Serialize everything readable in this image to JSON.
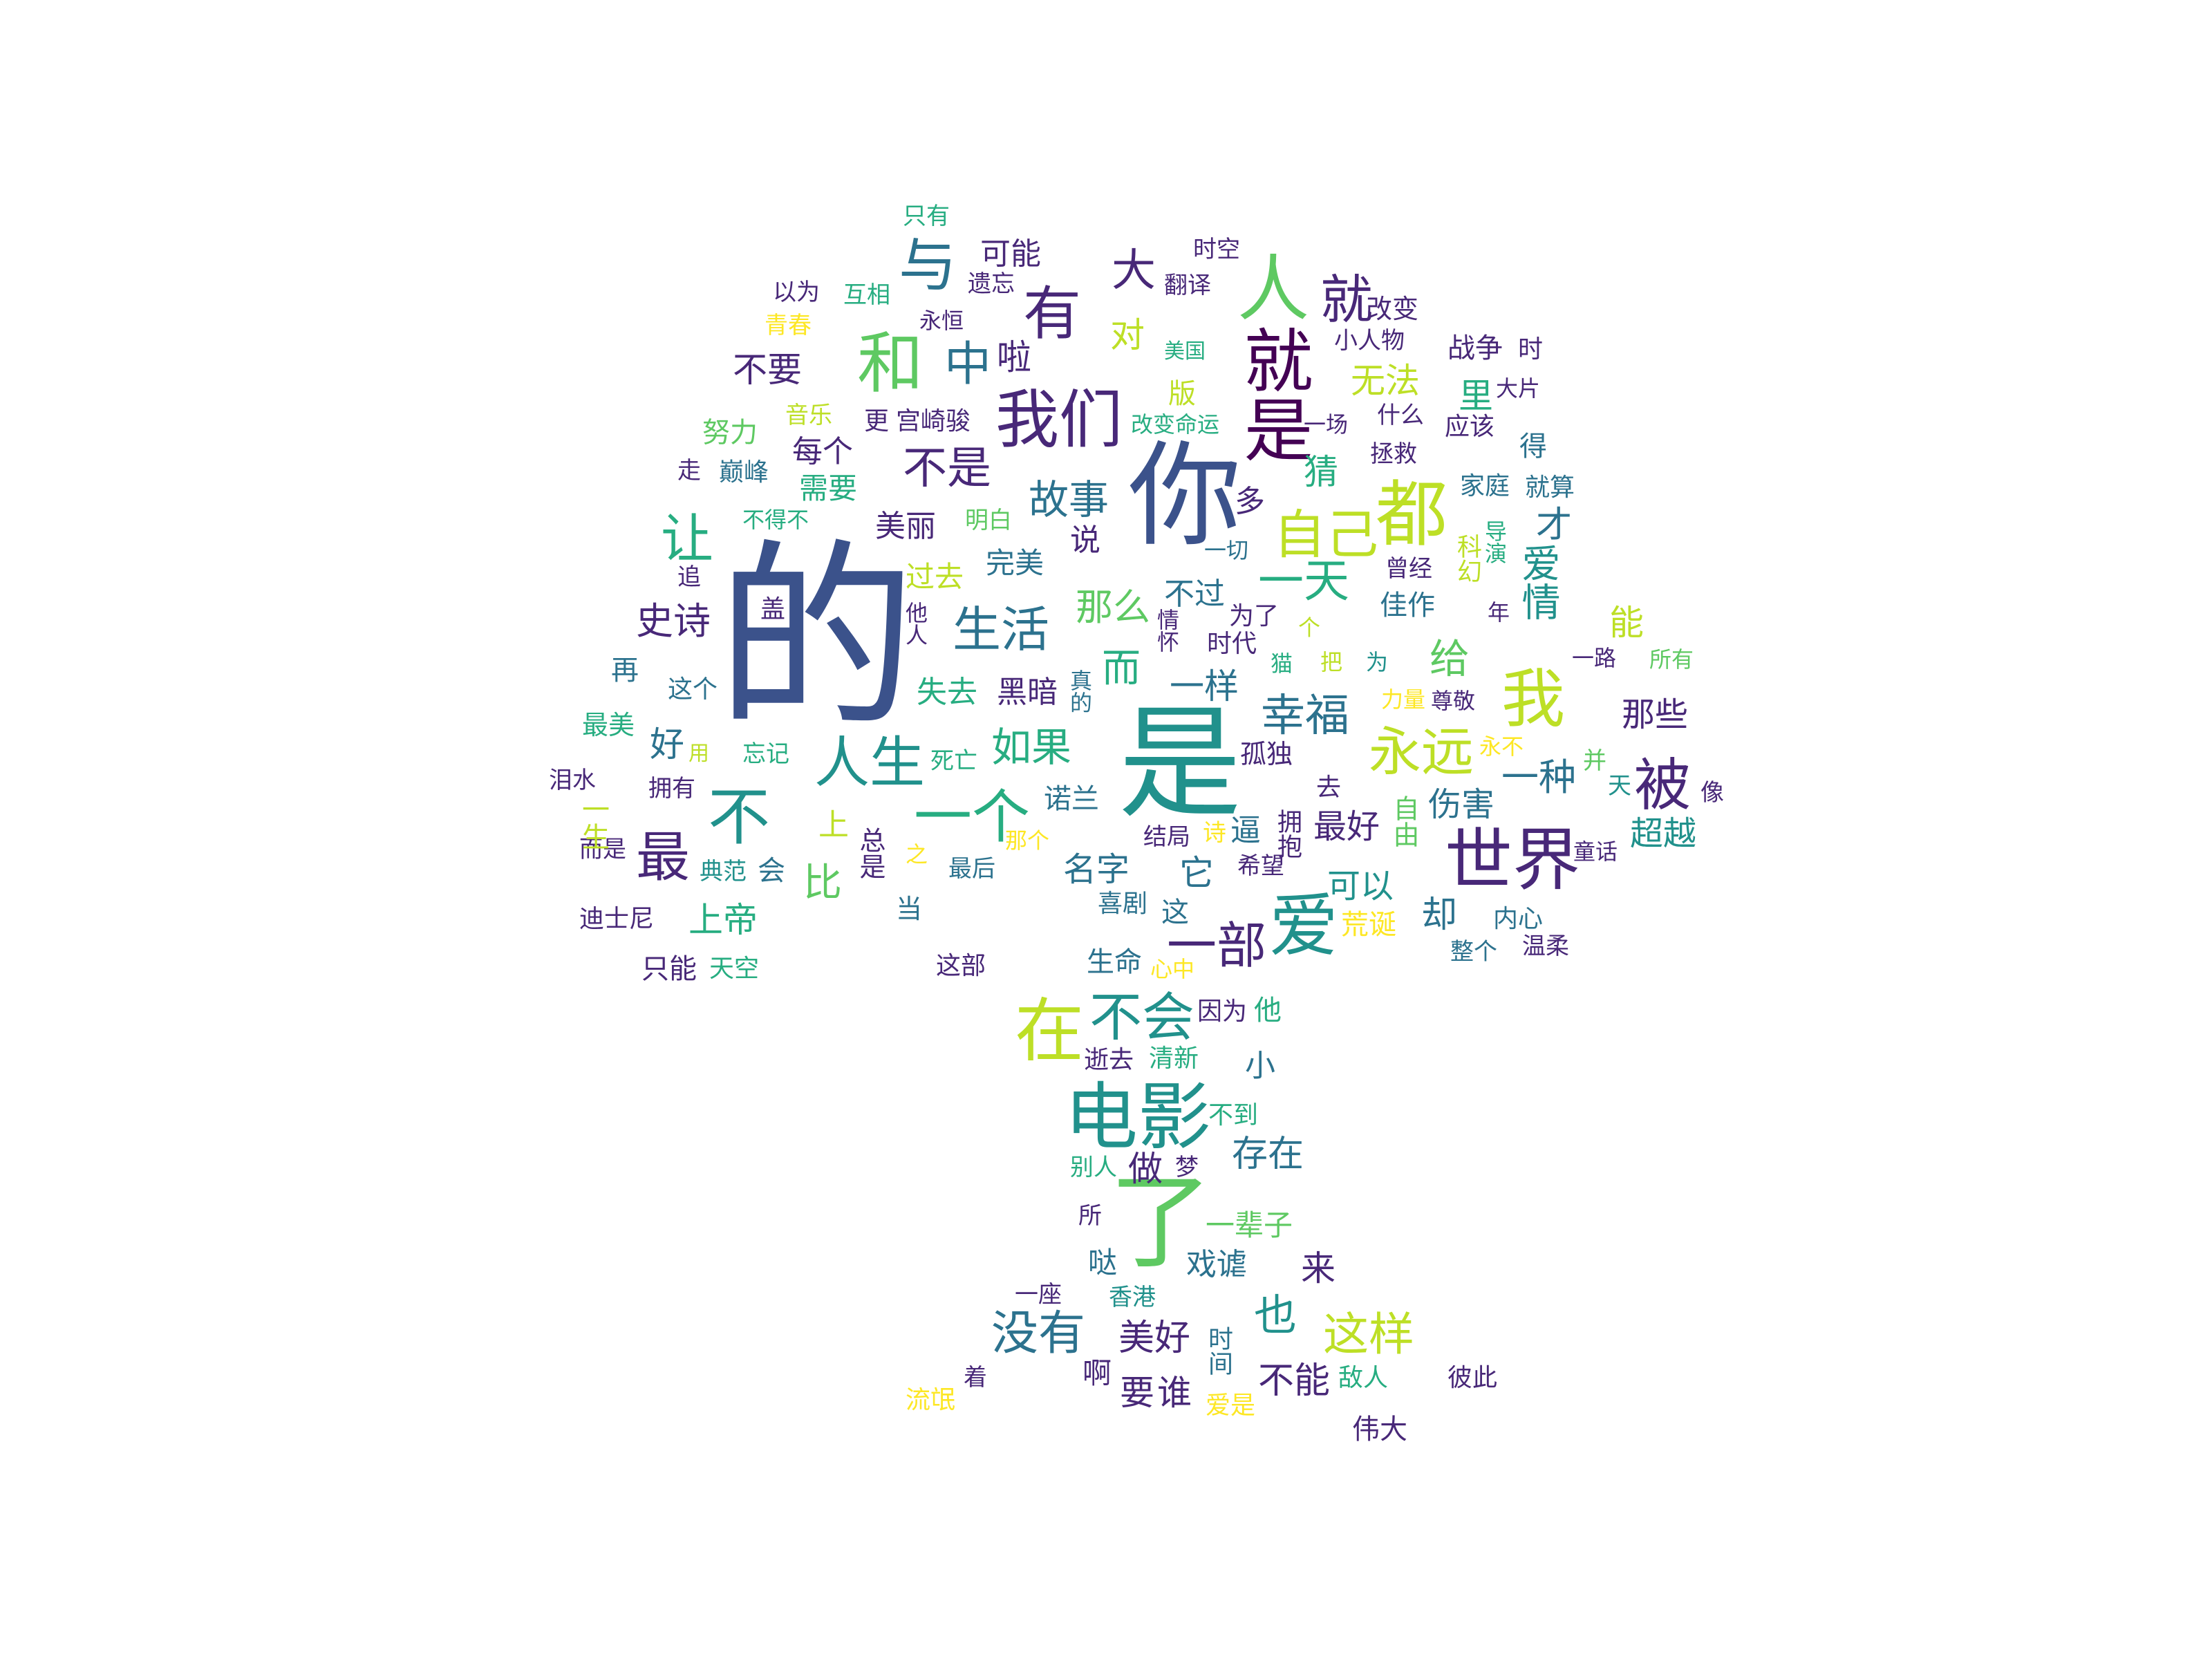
{
  "palette": {
    "c1": "#3b528b",
    "c2": "#21918c",
    "c3": "#5ec962",
    "c4": "#bddf26",
    "c5": "#440154",
    "c6": "#2c728e",
    "c7": "#27ad81",
    "c8": "#fde725",
    "c9": "#482878"
  },
  "words": [
    {
      "text": "的",
      "color": "c1"
    },
    {
      "text": "是",
      "color": "c2"
    },
    {
      "text": "你",
      "color": "c1"
    },
    {
      "text": "了",
      "color": "c3"
    },
    {
      "text": "电影",
      "color": "c2"
    },
    {
      "text": "都",
      "color": "c4"
    },
    {
      "text": "人",
      "color": "c3"
    },
    {
      "text": "就是",
      "color": "c5"
    },
    {
      "text": "我们",
      "color": "c9"
    },
    {
      "text": "世界",
      "color": "c9"
    },
    {
      "text": "爱",
      "color": "c2"
    },
    {
      "text": "不会",
      "color": "c2"
    },
    {
      "text": "在",
      "color": "c4"
    },
    {
      "text": "和",
      "color": "c3"
    },
    {
      "text": "有",
      "color": "c9"
    },
    {
      "text": "与",
      "color": "c6"
    },
    {
      "text": "我",
      "color": "c4"
    },
    {
      "text": "被",
      "color": "c9"
    },
    {
      "text": "不",
      "color": "c2"
    },
    {
      "text": "自己",
      "color": "c4"
    },
    {
      "text": "人生",
      "color": "c2"
    },
    {
      "text": "一个",
      "color": "c7"
    },
    {
      "text": "永远",
      "color": "c4"
    },
    {
      "text": "让",
      "color": "c7"
    },
    {
      "text": "最",
      "color": "c9"
    },
    {
      "text": "就",
      "color": "c9"
    },
    {
      "text": "生活",
      "color": "c6"
    },
    {
      "text": "一部",
      "color": "c9"
    },
    {
      "text": "中",
      "color": "c6"
    },
    {
      "text": "不是",
      "color": "c9"
    },
    {
      "text": "大",
      "color": "c9"
    },
    {
      "text": "没有",
      "color": "c6"
    },
    {
      "text": "这样",
      "color": "c4"
    },
    {
      "text": "幸福",
      "color": "c6"
    },
    {
      "text": "故事",
      "color": "c6"
    },
    {
      "text": "如果",
      "color": "c7"
    },
    {
      "text": "史诗",
      "color": "c9"
    },
    {
      "text": "一天",
      "color": "c7"
    },
    {
      "text": "爱情",
      "color": "c2"
    },
    {
      "text": "一种",
      "color": "c6"
    },
    {
      "text": "那么",
      "color": "c3"
    },
    {
      "text": "存在",
      "color": "c6"
    },
    {
      "text": "也",
      "color": "c2"
    },
    {
      "text": "美好",
      "color": "c9"
    },
    {
      "text": "不能",
      "color": "c9"
    },
    {
      "text": "要",
      "color": "c9"
    },
    {
      "text": "谁",
      "color": "c9"
    },
    {
      "text": "可以",
      "color": "c2"
    },
    {
      "text": "最好",
      "color": "c9"
    },
    {
      "text": "伤害",
      "color": "c6"
    },
    {
      "text": "超越",
      "color": "c2"
    },
    {
      "text": "那些",
      "color": "c9"
    },
    {
      "text": "名字",
      "color": "c6"
    },
    {
      "text": "上帝",
      "color": "c7"
    },
    {
      "text": "比",
      "color": "c3"
    },
    {
      "text": "上",
      "color": "c4"
    },
    {
      "text": "一样",
      "color": "c6"
    },
    {
      "text": "黑暗",
      "color": "c9"
    },
    {
      "text": "失去",
      "color": "c7"
    },
    {
      "text": "美丽",
      "color": "c9"
    },
    {
      "text": "不要",
      "color": "c9"
    },
    {
      "text": "可能",
      "color": "c9"
    },
    {
      "text": "对",
      "color": "c4"
    },
    {
      "text": "无法",
      "color": "c4"
    },
    {
      "text": "啦",
      "color": "c9"
    },
    {
      "text": "好",
      "color": "c6"
    },
    {
      "text": "给",
      "color": "c3"
    },
    {
      "text": "能",
      "color": "c4"
    },
    {
      "text": "才",
      "color": "c6"
    },
    {
      "text": "猜",
      "color": "c7"
    },
    {
      "text": "里",
      "color": "c7"
    },
    {
      "text": "每个",
      "color": "c9"
    },
    {
      "text": "需要",
      "color": "c7"
    },
    {
      "text": "完美",
      "color": "c6"
    },
    {
      "text": "过去",
      "color": "c4"
    },
    {
      "text": "说",
      "color": "c9"
    },
    {
      "text": "多",
      "color": "c9"
    },
    {
      "text": "来",
      "color": "c9"
    },
    {
      "text": "做",
      "color": "c9"
    },
    {
      "text": "戏谑",
      "color": "c6"
    },
    {
      "text": "一辈子",
      "color": "c3"
    },
    {
      "text": "啊",
      "color": "c9"
    },
    {
      "text": "哒",
      "color": "c6"
    },
    {
      "text": "而",
      "color": "c7"
    },
    {
      "text": "不过",
      "color": "c6"
    },
    {
      "text": "却",
      "color": "c6"
    },
    {
      "text": "佳作",
      "color": "c6"
    },
    {
      "text": "时代",
      "color": "c9"
    },
    {
      "text": "为了",
      "color": "c9"
    },
    {
      "text": "这个",
      "color": "c6"
    },
    {
      "text": "再",
      "color": "c6"
    },
    {
      "text": "最美",
      "color": "c7"
    },
    {
      "text": "孤独",
      "color": "c9"
    },
    {
      "text": "它",
      "color": "c6"
    },
    {
      "text": "这",
      "color": "c6"
    },
    {
      "text": "结局",
      "color": "c9"
    },
    {
      "text": "诗",
      "color": "c8"
    },
    {
      "text": "逼",
      "color": "c6"
    },
    {
      "text": "诺兰",
      "color": "c6"
    },
    {
      "text": "死亡",
      "color": "c7"
    },
    {
      "text": "内心",
      "color": "c6"
    },
    {
      "text": "温柔",
      "color": "c9"
    },
    {
      "text": "整个",
      "color": "c6"
    },
    {
      "text": "荒诞",
      "color": "c8"
    },
    {
      "text": "喜剧",
      "color": "c6"
    },
    {
      "text": "希望",
      "color": "c9"
    },
    {
      "text": "最后",
      "color": "c6"
    },
    {
      "text": "之",
      "color": "c8"
    },
    {
      "text": "当",
      "color": "c6"
    },
    {
      "text": "总是",
      "color": "c9"
    },
    {
      "text": "会",
      "color": "c6"
    },
    {
      "text": "典范",
      "color": "c2"
    },
    {
      "text": "而是",
      "color": "c9"
    },
    {
      "text": "一生",
      "color": "c4"
    },
    {
      "text": "泪水",
      "color": "c9"
    },
    {
      "text": "拥有",
      "color": "c9"
    },
    {
      "text": "用",
      "color": "c4"
    },
    {
      "text": "忘记",
      "color": "c7"
    },
    {
      "text": "迪士尼",
      "color": "c9"
    },
    {
      "text": "只能",
      "color": "c9"
    },
    {
      "text": "天空",
      "color": "c7"
    },
    {
      "text": "这部",
      "color": "c9"
    },
    {
      "text": "生命",
      "color": "c6"
    },
    {
      "text": "心中",
      "color": "c8"
    },
    {
      "text": "因为",
      "color": "c9"
    },
    {
      "text": "他",
      "color": "c7"
    },
    {
      "text": "小",
      "color": "c6"
    },
    {
      "text": "逝去",
      "color": "c9"
    },
    {
      "text": "清新",
      "color": "c7"
    },
    {
      "text": "不到",
      "color": "c7"
    },
    {
      "text": "别人",
      "color": "c7"
    },
    {
      "text": "梦",
      "color": "c9"
    },
    {
      "text": "所",
      "color": "c9"
    },
    {
      "text": "一座",
      "color": "c9"
    },
    {
      "text": "香港",
      "color": "c2"
    },
    {
      "text": "时间",
      "color": "c6"
    },
    {
      "text": "爱是",
      "color": "c8"
    },
    {
      "text": "着",
      "color": "c9"
    },
    {
      "text": "流氓",
      "color": "c8"
    },
    {
      "text": "伟大",
      "color": "c9"
    },
    {
      "text": "敌人",
      "color": "c7"
    },
    {
      "text": "彼此",
      "color": "c9"
    },
    {
      "text": "那个",
      "color": "c8"
    },
    {
      "text": "拥抱",
      "color": "c9"
    },
    {
      "text": "去",
      "color": "c9"
    },
    {
      "text": "自由",
      "color": "c3"
    },
    {
      "text": "并",
      "color": "c3"
    },
    {
      "text": "天",
      "color": "c2"
    },
    {
      "text": "像",
      "color": "c9"
    },
    {
      "text": "童话",
      "color": "c9"
    },
    {
      "text": "永不",
      "color": "c8"
    },
    {
      "text": "尊敬",
      "color": "c9"
    },
    {
      "text": "力量",
      "color": "c8"
    },
    {
      "text": "一路",
      "color": "c9"
    },
    {
      "text": "所有",
      "color": "c3"
    },
    {
      "text": "年",
      "color": "c9"
    },
    {
      "text": "曾经",
      "color": "c9"
    },
    {
      "text": "科幻",
      "color": "c4"
    },
    {
      "text": "导演",
      "color": "c7"
    },
    {
      "text": "家庭",
      "color": "c6"
    },
    {
      "text": "就算",
      "color": "c6"
    },
    {
      "text": "拯救",
      "color": "c9"
    },
    {
      "text": "应该",
      "color": "c9"
    },
    {
      "text": "得",
      "color": "c6"
    },
    {
      "text": "一场",
      "color": "c9"
    },
    {
      "text": "什么",
      "color": "c9"
    },
    {
      "text": "大片",
      "color": "c9"
    },
    {
      "text": "时",
      "color": "c9"
    },
    {
      "text": "战争",
      "color": "c9"
    },
    {
      "text": "小人物",
      "color": "c9"
    },
    {
      "text": "改变",
      "color": "c9"
    },
    {
      "text": "时空",
      "color": "c9"
    },
    {
      "text": "翻译",
      "color": "c9"
    },
    {
      "text": "美国",
      "color": "c7"
    },
    {
      "text": "版",
      "color": "c4"
    },
    {
      "text": "改变命运",
      "color": "c7"
    },
    {
      "text": "宫崎骏",
      "color": "c9"
    },
    {
      "text": "更",
      "color": "c9"
    },
    {
      "text": "音乐",
      "color": "c4"
    },
    {
      "text": "努力",
      "color": "c3"
    },
    {
      "text": "巅峰",
      "color": "c6"
    },
    {
      "text": "走",
      "color": "c9"
    },
    {
      "text": "不得不",
      "color": "c7"
    },
    {
      "text": "明白",
      "color": "c3"
    },
    {
      "text": "一切",
      "color": "c6"
    },
    {
      "text": "追",
      "color": "c9"
    },
    {
      "text": "盖",
      "color": "c9"
    },
    {
      "text": "他人",
      "color": "c9"
    },
    {
      "text": "情怀",
      "color": "c9"
    },
    {
      "text": "猫",
      "color": "c7"
    },
    {
      "text": "把",
      "color": "c4"
    },
    {
      "text": "为",
      "color": "c2"
    },
    {
      "text": "个",
      "color": "c4"
    },
    {
      "text": "真的",
      "color": "c6"
    },
    {
      "text": "只有",
      "color": "c7"
    },
    {
      "text": "以为",
      "color": "c9"
    },
    {
      "text": "互相",
      "color": "c7"
    },
    {
      "text": "遗忘",
      "color": "c9"
    },
    {
      "text": "永恒",
      "color": "c9"
    },
    {
      "text": "青春",
      "color": "c8"
    }
  ]
}
